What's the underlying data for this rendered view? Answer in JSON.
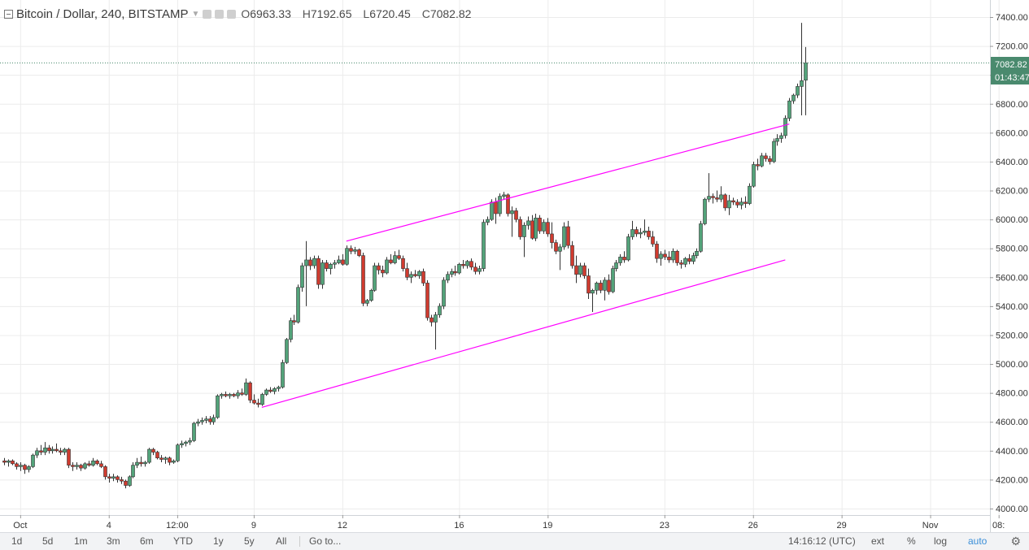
{
  "header": {
    "title": "Bitcoin / Dollar, 240, BITSTAMP",
    "open_label": "O",
    "open_value": "6963.33",
    "high_label": "H",
    "high_value": "7192.65",
    "low_label": "L",
    "low_value": "6720.45",
    "close_label": "C",
    "close_value": "7082.82"
  },
  "price_badge": {
    "value": "7082.82",
    "countdown": "01:43:47",
    "color": "#4a8a6e"
  },
  "bottom_bar": {
    "ranges": [
      "1d",
      "5d",
      "1m",
      "3m",
      "6m",
      "YTD",
      "1y",
      "5y",
      "All"
    ],
    "goto": "Go to...",
    "time": "14:16:12 (UTC)",
    "ext": "ext",
    "percent": "%",
    "log": "log",
    "auto": "auto"
  },
  "colors": {
    "up": "#53a37a",
    "down": "#d03b2f",
    "channel": "#ff00ff",
    "grid": "#ececec",
    "axis_text": "#333333"
  },
  "chart_data": {
    "type": "candlestick",
    "ylim": [
      3950,
      7500
    ],
    "y_ticks": [
      4000,
      4200,
      4400,
      4600,
      4800,
      5000,
      5200,
      5400,
      5600,
      5800,
      6000,
      6200,
      6400,
      6600,
      6800,
      7000,
      7200,
      7400
    ],
    "y_tick_labels": [
      "4000.00",
      "4200.00",
      "4400.00",
      "4600.00",
      "4800.00",
      "5000.00",
      "5200.00",
      "5400.00",
      "5600.00",
      "5800.00",
      "6000.00",
      "6200.00",
      "6400.00",
      "6600.00",
      "6800.00",
      "7000.00",
      "7200.00",
      "7400.00"
    ],
    "x_ticks": [
      {
        "label": "Oct",
        "bar": 3
      },
      {
        "label": "4",
        "bar": 25
      },
      {
        "label": "12:00",
        "bar": 42
      },
      {
        "label": "9",
        "bar": 61
      },
      {
        "label": "12",
        "bar": 83
      },
      {
        "label": "16",
        "bar": 112
      },
      {
        "label": "19",
        "bar": 134
      },
      {
        "label": "23",
        "bar": 163
      },
      {
        "label": "26",
        "bar": 185
      },
      {
        "label": "29",
        "bar": 207
      },
      {
        "label": "Nov",
        "bar": 229
      },
      {
        "label": "08:",
        "bar": 246
      }
    ],
    "bar_count": 247,
    "last_price": 7082.82,
    "candles": [
      [
        -1,
        4330,
        4350,
        4300,
        4320
      ],
      [
        0,
        4320,
        4340,
        4290,
        4330
      ],
      [
        1,
        4330,
        4340,
        4300,
        4310
      ],
      [
        2,
        4310,
        4320,
        4270,
        4290
      ],
      [
        3,
        4290,
        4320,
        4260,
        4300
      ],
      [
        4,
        4300,
        4310,
        4240,
        4270
      ],
      [
        5,
        4270,
        4300,
        4250,
        4290
      ],
      [
        6,
        4290,
        4380,
        4280,
        4370
      ],
      [
        7,
        4370,
        4420,
        4350,
        4400
      ],
      [
        8,
        4400,
        4440,
        4370,
        4390
      ],
      [
        9,
        4390,
        4460,
        4370,
        4420
      ],
      [
        10,
        4420,
        4440,
        4380,
        4400
      ],
      [
        11,
        4400,
        4430,
        4380,
        4410
      ],
      [
        12,
        4410,
        4450,
        4390,
        4400
      ],
      [
        13,
        4400,
        4420,
        4370,
        4390
      ],
      [
        14,
        4390,
        4420,
        4370,
        4410
      ],
      [
        15,
        4410,
        4420,
        4280,
        4300
      ],
      [
        16,
        4300,
        4320,
        4260,
        4290
      ],
      [
        17,
        4290,
        4320,
        4270,
        4300
      ],
      [
        18,
        4300,
        4310,
        4260,
        4280
      ],
      [
        19,
        4280,
        4320,
        4270,
        4310
      ],
      [
        20,
        4310,
        4330,
        4290,
        4300
      ],
      [
        21,
        4300,
        4350,
        4290,
        4330
      ],
      [
        22,
        4330,
        4340,
        4300,
        4310
      ],
      [
        23,
        4310,
        4330,
        4280,
        4290
      ],
      [
        24,
        4290,
        4300,
        4200,
        4220
      ],
      [
        25,
        4220,
        4240,
        4180,
        4210
      ],
      [
        26,
        4210,
        4240,
        4190,
        4220
      ],
      [
        27,
        4220,
        4230,
        4180,
        4200
      ],
      [
        28,
        4200,
        4220,
        4170,
        4190
      ],
      [
        29,
        4190,
        4200,
        4140,
        4160
      ],
      [
        30,
        4160,
        4230,
        4150,
        4220
      ],
      [
        31,
        4220,
        4320,
        4210,
        4300
      ],
      [
        32,
        4300,
        4350,
        4280,
        4320
      ],
      [
        33,
        4320,
        4360,
        4290,
        4310
      ],
      [
        34,
        4310,
        4330,
        4290,
        4320
      ],
      [
        35,
        4320,
        4420,
        4310,
        4410
      ],
      [
        36,
        4410,
        4420,
        4370,
        4390
      ],
      [
        37,
        4390,
        4400,
        4340,
        4350
      ],
      [
        38,
        4350,
        4370,
        4320,
        4340
      ],
      [
        39,
        4340,
        4360,
        4310,
        4350
      ],
      [
        40,
        4350,
        4360,
        4300,
        4320
      ],
      [
        41,
        4320,
        4340,
        4310,
        4330
      ],
      [
        42,
        4330,
        4450,
        4320,
        4440
      ],
      [
        43,
        4440,
        4470,
        4420,
        4450
      ],
      [
        44,
        4450,
        4470,
        4430,
        4460
      ],
      [
        45,
        4460,
        4490,
        4440,
        4470
      ],
      [
        46,
        4470,
        4600,
        4460,
        4590
      ],
      [
        47,
        4590,
        4620,
        4570,
        4600
      ],
      [
        48,
        4600,
        4630,
        4580,
        4610
      ],
      [
        49,
        4610,
        4640,
        4590,
        4620
      ],
      [
        50,
        4620,
        4640,
        4580,
        4600
      ],
      [
        51,
        4600,
        4650,
        4580,
        4630
      ],
      [
        52,
        4630,
        4790,
        4620,
        4780
      ],
      [
        53,
        4780,
        4800,
        4760,
        4790
      ],
      [
        54,
        4790,
        4810,
        4770,
        4780
      ],
      [
        55,
        4780,
        4800,
        4760,
        4790
      ],
      [
        56,
        4790,
        4800,
        4770,
        4780
      ],
      [
        57,
        4780,
        4820,
        4760,
        4800
      ],
      [
        58,
        4800,
        4830,
        4780,
        4790
      ],
      [
        59,
        4790,
        4900,
        4780,
        4870
      ],
      [
        60,
        4870,
        4880,
        4730,
        4750
      ],
      [
        61,
        4750,
        4790,
        4720,
        4730
      ],
      [
        62,
        4730,
        4760,
        4700,
        4720
      ],
      [
        63,
        4720,
        4800,
        4710,
        4790
      ],
      [
        64,
        4790,
        4830,
        4780,
        4820
      ],
      [
        65,
        4820,
        4840,
        4800,
        4810
      ],
      [
        66,
        4810,
        4840,
        4790,
        4830
      ],
      [
        67,
        4830,
        4850,
        4810,
        4840
      ],
      [
        68,
        4840,
        5030,
        4830,
        5010
      ],
      [
        69,
        5010,
        5180,
        5000,
        5170
      ],
      [
        70,
        5170,
        5320,
        5150,
        5300
      ],
      [
        71,
        5300,
        5340,
        5270,
        5290
      ],
      [
        72,
        5290,
        5550,
        5280,
        5530
      ],
      [
        73,
        5530,
        5700,
        5500,
        5680
      ],
      [
        74,
        5680,
        5850,
        5400,
        5720
      ],
      [
        75,
        5720,
        5740,
        5650,
        5680
      ],
      [
        76,
        5680,
        5750,
        5660,
        5730
      ],
      [
        77,
        5730,
        5750,
        5520,
        5550
      ],
      [
        78,
        5550,
        5720,
        5520,
        5700
      ],
      [
        79,
        5700,
        5720,
        5640,
        5660
      ],
      [
        80,
        5660,
        5700,
        5620,
        5690
      ],
      [
        81,
        5690,
        5720,
        5660,
        5700
      ],
      [
        82,
        5700,
        5750,
        5690,
        5720
      ],
      [
        83,
        5720,
        5760,
        5680,
        5690
      ],
      [
        84,
        5690,
        5820,
        5680,
        5800
      ],
      [
        85,
        5800,
        5820,
        5760,
        5780
      ],
      [
        86,
        5780,
        5810,
        5760,
        5790
      ],
      [
        87,
        5790,
        5800,
        5740,
        5750
      ],
      [
        88,
        5750,
        5770,
        5400,
        5420
      ],
      [
        89,
        5420,
        5450,
        5400,
        5440
      ],
      [
        90,
        5440,
        5520,
        5430,
        5510
      ],
      [
        91,
        5510,
        5700,
        5500,
        5680
      ],
      [
        92,
        5680,
        5700,
        5620,
        5650
      ],
      [
        93,
        5650,
        5680,
        5600,
        5630
      ],
      [
        94,
        5630,
        5740,
        5620,
        5720
      ],
      [
        95,
        5720,
        5760,
        5690,
        5700
      ],
      [
        96,
        5700,
        5780,
        5690,
        5750
      ],
      [
        97,
        5750,
        5790,
        5720,
        5730
      ],
      [
        98,
        5730,
        5750,
        5640,
        5660
      ],
      [
        99,
        5660,
        5700,
        5580,
        5600
      ],
      [
        100,
        5600,
        5640,
        5560,
        5620
      ],
      [
        101,
        5620,
        5650,
        5600,
        5610
      ],
      [
        102,
        5610,
        5650,
        5590,
        5640
      ],
      [
        103,
        5640,
        5660,
        5540,
        5560
      ],
      [
        104,
        5560,
        5580,
        5300,
        5320
      ],
      [
        105,
        5320,
        5340,
        5260,
        5290
      ],
      [
        106,
        5290,
        5360,
        5100,
        5340
      ],
      [
        107,
        5340,
        5420,
        5320,
        5400
      ],
      [
        108,
        5400,
        5600,
        5380,
        5580
      ],
      [
        109,
        5580,
        5640,
        5560,
        5620
      ],
      [
        110,
        5620,
        5660,
        5600,
        5640
      ],
      [
        111,
        5640,
        5680,
        5610,
        5630
      ],
      [
        112,
        5630,
        5700,
        5620,
        5690
      ],
      [
        113,
        5690,
        5720,
        5660,
        5680
      ],
      [
        114,
        5680,
        5720,
        5660,
        5710
      ],
      [
        115,
        5710,
        5730,
        5650,
        5670
      ],
      [
        116,
        5670,
        5700,
        5620,
        5640
      ],
      [
        117,
        5640,
        5680,
        5620,
        5660
      ],
      [
        118,
        5660,
        6000,
        5640,
        5980
      ],
      [
        119,
        5980,
        6020,
        5960,
        6000
      ],
      [
        120,
        6000,
        6140,
        5990,
        6120
      ],
      [
        121,
        6120,
        6150,
        5970,
        6040
      ],
      [
        122,
        6040,
        6180,
        6020,
        6160
      ],
      [
        123,
        6160,
        6190,
        6140,
        6170
      ],
      [
        124,
        6170,
        6180,
        6020,
        6040
      ],
      [
        125,
        6040,
        6090,
        5880,
        6060
      ],
      [
        126,
        6060,
        6080,
        5980,
        6000
      ],
      [
        127,
        6000,
        6020,
        5860,
        5880
      ],
      [
        128,
        5880,
        5980,
        5740,
        5960
      ],
      [
        129,
        5960,
        6020,
        5930,
        5990
      ],
      [
        130,
        5990,
        6030,
        5860,
        5870
      ],
      [
        131,
        5870,
        6040,
        5850,
        6010
      ],
      [
        132,
        6010,
        6030,
        5900,
        5920
      ],
      [
        133,
        5920,
        6000,
        5900,
        5980
      ],
      [
        134,
        5980,
        6010,
        5880,
        5900
      ],
      [
        135,
        5900,
        5980,
        5800,
        5840
      ],
      [
        136,
        5840,
        5860,
        5760,
        5780
      ],
      [
        137,
        5780,
        5830,
        5650,
        5810
      ],
      [
        138,
        5810,
        5980,
        5790,
        5950
      ],
      [
        139,
        5950,
        5990,
        5800,
        5820
      ],
      [
        140,
        5820,
        5850,
        5660,
        5680
      ],
      [
        141,
        5680,
        5750,
        5560,
        5620
      ],
      [
        142,
        5620,
        5700,
        5600,
        5680
      ],
      [
        143,
        5680,
        5700,
        5590,
        5610
      ],
      [
        144,
        5610,
        5660,
        5450,
        5490
      ],
      [
        145,
        5490,
        5520,
        5360,
        5510
      ],
      [
        146,
        5510,
        5570,
        5480,
        5560
      ],
      [
        147,
        5560,
        5580,
        5490,
        5510
      ],
      [
        148,
        5510,
        5600,
        5440,
        5580
      ],
      [
        149,
        5580,
        5620,
        5480,
        5500
      ],
      [
        150,
        5500,
        5680,
        5490,
        5660
      ],
      [
        151,
        5660,
        5720,
        5640,
        5700
      ],
      [
        152,
        5700,
        5760,
        5680,
        5740
      ],
      [
        153,
        5740,
        5780,
        5700,
        5720
      ],
      [
        154,
        5720,
        5900,
        5710,
        5880
      ],
      [
        155,
        5880,
        5990,
        5860,
        5930
      ],
      [
        156,
        5930,
        5950,
        5880,
        5900
      ],
      [
        157,
        5900,
        5940,
        5870,
        5910
      ],
      [
        158,
        5910,
        6000,
        5890,
        5920
      ],
      [
        159,
        5920,
        5950,
        5860,
        5880
      ],
      [
        160,
        5880,
        5920,
        5810,
        5830
      ],
      [
        161,
        5830,
        5850,
        5700,
        5730
      ],
      [
        162,
        5730,
        5780,
        5680,
        5760
      ],
      [
        163,
        5760,
        5790,
        5720,
        5740
      ],
      [
        164,
        5740,
        5780,
        5700,
        5720
      ],
      [
        165,
        5720,
        5800,
        5700,
        5780
      ],
      [
        166,
        5780,
        5790,
        5680,
        5700
      ],
      [
        167,
        5700,
        5720,
        5660,
        5690
      ],
      [
        168,
        5690,
        5740,
        5670,
        5730
      ],
      [
        169,
        5730,
        5760,
        5690,
        5710
      ],
      [
        170,
        5710,
        5770,
        5690,
        5750
      ],
      [
        171,
        5750,
        5800,
        5730,
        5780
      ],
      [
        172,
        5780,
        5990,
        5770,
        5970
      ],
      [
        173,
        5970,
        6150,
        5960,
        6140
      ],
      [
        174,
        6140,
        6320,
        6120,
        6160
      ],
      [
        175,
        6160,
        6180,
        6110,
        6150
      ],
      [
        176,
        6150,
        6200,
        6120,
        6140
      ],
      [
        177,
        6140,
        6230,
        6120,
        6170
      ],
      [
        178,
        6170,
        6180,
        6060,
        6080
      ],
      [
        179,
        6080,
        6170,
        6030,
        6130
      ],
      [
        180,
        6130,
        6150,
        6100,
        6120
      ],
      [
        181,
        6120,
        6140,
        6080,
        6100
      ],
      [
        182,
        6100,
        6150,
        6070,
        6120
      ],
      [
        183,
        6120,
        6160,
        6080,
        6110
      ],
      [
        184,
        6110,
        6250,
        6100,
        6230
      ],
      [
        185,
        6230,
        6400,
        6220,
        6380
      ],
      [
        186,
        6380,
        6420,
        6340,
        6370
      ],
      [
        187,
        6370,
        6460,
        6360,
        6440
      ],
      [
        188,
        6440,
        6460,
        6400,
        6420
      ],
      [
        189,
        6420,
        6440,
        6380,
        6400
      ],
      [
        190,
        6400,
        6560,
        6390,
        6540
      ],
      [
        191,
        6540,
        6590,
        6510,
        6560
      ],
      [
        192,
        6560,
        6600,
        6530,
        6580
      ],
      [
        193,
        6580,
        6720,
        6560,
        6700
      ],
      [
        194,
        6700,
        6840,
        6680,
        6820
      ],
      [
        195,
        6820,
        6870,
        6800,
        6860
      ],
      [
        196,
        6860,
        6940,
        6840,
        6920
      ],
      [
        197,
        6920,
        7360,
        6720,
        6960
      ],
      [
        198,
        6963.33,
        7192.65,
        6720.45,
        7082.82
      ]
    ],
    "channel_upper": [
      [
        84,
        5850
      ],
      [
        194,
        6660
      ]
    ],
    "channel_lower": [
      [
        63,
        4700
      ],
      [
        193,
        5720
      ]
    ]
  }
}
